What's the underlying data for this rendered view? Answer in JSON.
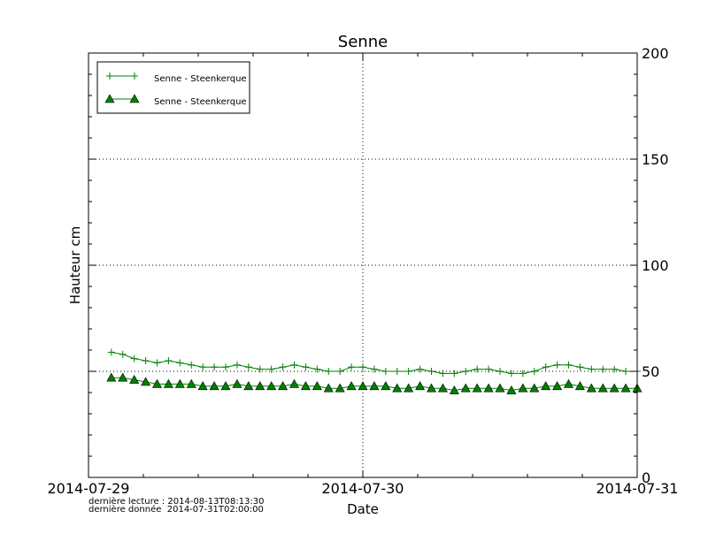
{
  "chart_data": {
    "type": "line",
    "title": "Senne",
    "xlabel": "Date",
    "ylabel": "Hauteur cm",
    "xlim": [
      "2014-07-29T00:00",
      "2014-07-31T00:00"
    ],
    "ylim": [
      0,
      200
    ],
    "x_ticks": [
      "2014-07-29",
      "2014-07-30",
      "2014-07-31"
    ],
    "y_ticks": [
      0,
      50,
      100,
      150,
      200
    ],
    "y_axis_side": "right",
    "grid": true,
    "legend_position": "top-left",
    "x_start": "2014-07-29T02:00",
    "x_step": "1 hour",
    "series": [
      {
        "name": "Senne - Steenkerque",
        "marker": "plus",
        "color": "#008000",
        "values": [
          59,
          58,
          56,
          55,
          54,
          55,
          54,
          53,
          52,
          52,
          52,
          53,
          52,
          51,
          51,
          52,
          53,
          52,
          51,
          50,
          50,
          52,
          52,
          51,
          50,
          50,
          50,
          51,
          50,
          49,
          49,
          50,
          51,
          51,
          50,
          49,
          49,
          50,
          52,
          53,
          53,
          52,
          51,
          51,
          51,
          50,
          50
        ]
      },
      {
        "name": "Senne - Steenkerque",
        "marker": "triangle",
        "color": "#008000",
        "values": [
          47,
          47,
          46,
          45,
          44,
          44,
          44,
          44,
          43,
          43,
          43,
          44,
          43,
          43,
          43,
          43,
          44,
          43,
          43,
          42,
          42,
          43,
          43,
          43,
          43,
          42,
          42,
          43,
          42,
          42,
          41,
          42,
          42,
          42,
          42,
          41,
          42,
          42,
          43,
          43,
          44,
          43,
          42,
          42,
          42,
          42,
          42
        ]
      }
    ]
  },
  "footer": {
    "last_read": "dernière lecture : 2014-08-13T08:13:30",
    "last_data": "dernière donnée  2014-07-31T02:00:00"
  }
}
